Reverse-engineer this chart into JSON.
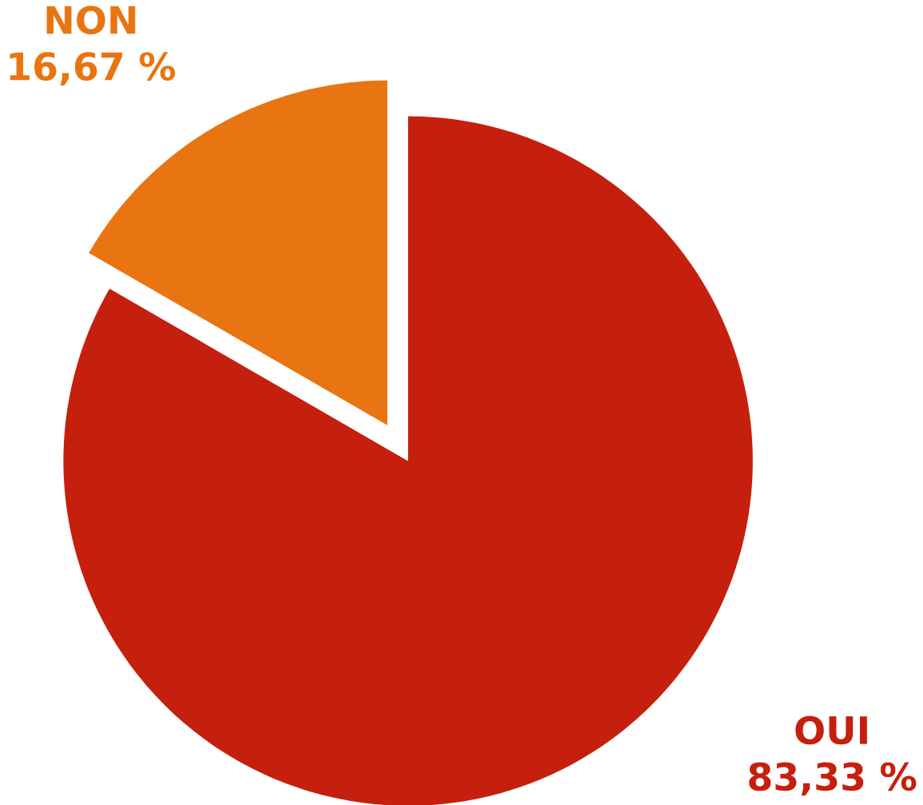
{
  "chart_data": {
    "type": "pie",
    "categories": [
      "OUI",
      "NON"
    ],
    "values": [
      83.33,
      16.67
    ],
    "colors": [
      "#c5200d",
      "#e87511"
    ],
    "value_labels": [
      "83,33 %",
      "16,67 %"
    ]
  }
}
